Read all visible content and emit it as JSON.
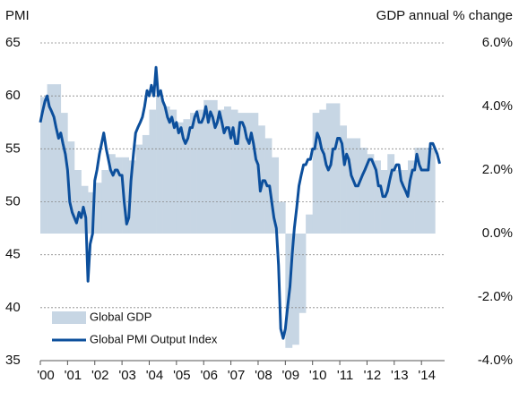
{
  "chart_data": {
    "type": "combo",
    "y_axis_title": "PMI",
    "y2_axis_title": "GDP annual % change",
    "xlim": [
      2000,
      2014.85
    ],
    "xticks": [
      {
        "value": 2000,
        "label": "'00"
      },
      {
        "value": 2001,
        "label": "'01"
      },
      {
        "value": 2002,
        "label": "'02"
      },
      {
        "value": 2003,
        "label": "'03"
      },
      {
        "value": 2004,
        "label": "'04"
      },
      {
        "value": 2005,
        "label": "'05"
      },
      {
        "value": 2006,
        "label": "'06"
      },
      {
        "value": 2007,
        "label": "'07"
      },
      {
        "value": 2008,
        "label": "'08"
      },
      {
        "value": 2009,
        "label": "'09"
      },
      {
        "value": 2010,
        "label": "'10"
      },
      {
        "value": 2011,
        "label": "'11"
      },
      {
        "value": 2012,
        "label": "'12"
      },
      {
        "value": 2013,
        "label": "'13"
      },
      {
        "value": 2014,
        "label": "'14"
      }
    ],
    "ylim": [
      35,
      65
    ],
    "yticks": [
      35,
      40,
      45,
      50,
      55,
      60,
      65
    ],
    "y2lim": [
      -4,
      6
    ],
    "y2ticks": [
      {
        "value": -4,
        "label": "-4.0%"
      },
      {
        "value": -2,
        "label": "-2.0%"
      },
      {
        "value": 0,
        "label": "0.0%"
      },
      {
        "value": 2,
        "label": "2.0%"
      },
      {
        "value": 4,
        "label": "4.0%"
      },
      {
        "value": 6,
        "label": "6.0%"
      }
    ],
    "grid": true,
    "legend": "lower left",
    "series": [
      {
        "name": "Global GDP",
        "type": "bar",
        "axis": "y2",
        "color": "#c7d6e4",
        "x": [
          2000,
          2000.25,
          2000.5,
          2000.75,
          2001,
          2001.25,
          2001.5,
          2001.75,
          2002,
          2002.25,
          2002.5,
          2002.75,
          2003,
          2003.25,
          2003.5,
          2003.75,
          2004,
          2004.25,
          2004.5,
          2004.75,
          2005,
          2005.25,
          2005.5,
          2005.75,
          2006,
          2006.25,
          2006.5,
          2006.75,
          2007,
          2007.25,
          2007.5,
          2007.75,
          2008,
          2008.25,
          2008.5,
          2008.75,
          2009,
          2009.25,
          2009.5,
          2009.75,
          2010,
          2010.25,
          2010.5,
          2010.75,
          2011,
          2011.25,
          2011.5,
          2011.75,
          2012,
          2012.25,
          2012.5,
          2012.75,
          2013,
          2013.25,
          2013.5,
          2013.75,
          2014,
          2014.25
        ],
        "values": [
          4.3,
          4.7,
          4.7,
          3.8,
          2.9,
          2.0,
          1.5,
          1.3,
          1.6,
          2.0,
          2.5,
          2.4,
          2.4,
          2.3,
          2.8,
          3.1,
          3.9,
          4.3,
          4.0,
          3.9,
          3.5,
          3.6,
          3.8,
          3.9,
          4.2,
          4.2,
          3.9,
          4.0,
          3.9,
          3.8,
          3.8,
          3.8,
          3.4,
          3.0,
          2.4,
          1.0,
          -3.6,
          -3.5,
          -2.5,
          0.6,
          3.8,
          3.9,
          4.1,
          4.1,
          3.4,
          3.0,
          3.0,
          2.7,
          2.5,
          2.3,
          2.0,
          2.5,
          2.0,
          2.0,
          2.3,
          2.7,
          2.7,
          2.7
        ]
      },
      {
        "name": "Global PMI Output Index",
        "type": "line",
        "color": "#0c4f9c",
        "x": [
          2000,
          2000.08,
          2000.17,
          2000.25,
          2000.33,
          2000.42,
          2000.5,
          2000.58,
          2000.67,
          2000.75,
          2000.83,
          2000.92,
          2001,
          2001.08,
          2001.17,
          2001.25,
          2001.33,
          2001.42,
          2001.5,
          2001.58,
          2001.67,
          2001.75,
          2001.83,
          2001.92,
          2002,
          2002.08,
          2002.17,
          2002.25,
          2002.33,
          2002.42,
          2002.5,
          2002.58,
          2002.67,
          2002.75,
          2002.83,
          2002.92,
          2003,
          2003.08,
          2003.17,
          2003.25,
          2003.33,
          2003.42,
          2003.5,
          2003.58,
          2003.67,
          2003.75,
          2003.83,
          2003.92,
          2004,
          2004.08,
          2004.17,
          2004.25,
          2004.33,
          2004.42,
          2004.5,
          2004.58,
          2004.67,
          2004.75,
          2004.83,
          2004.92,
          2005,
          2005.08,
          2005.17,
          2005.25,
          2005.33,
          2005.42,
          2005.5,
          2005.58,
          2005.67,
          2005.75,
          2005.83,
          2005.92,
          2006,
          2006.08,
          2006.17,
          2006.25,
          2006.33,
          2006.42,
          2006.5,
          2006.58,
          2006.67,
          2006.75,
          2006.83,
          2006.92,
          2007,
          2007.08,
          2007.17,
          2007.25,
          2007.33,
          2007.42,
          2007.5,
          2007.58,
          2007.67,
          2007.75,
          2007.83,
          2007.92,
          2008,
          2008.08,
          2008.17,
          2008.25,
          2008.33,
          2008.42,
          2008.5,
          2008.58,
          2008.67,
          2008.75,
          2008.83,
          2008.92,
          2009,
          2009.08,
          2009.17,
          2009.25,
          2009.33,
          2009.42,
          2009.5,
          2009.58,
          2009.67,
          2009.75,
          2009.83,
          2009.92,
          2010,
          2010.08,
          2010.17,
          2010.25,
          2010.33,
          2010.42,
          2010.5,
          2010.58,
          2010.67,
          2010.75,
          2010.83,
          2010.92,
          2011,
          2011.08,
          2011.17,
          2011.25,
          2011.33,
          2011.42,
          2011.5,
          2011.58,
          2011.67,
          2011.75,
          2011.83,
          2011.92,
          2012,
          2012.08,
          2012.17,
          2012.25,
          2012.33,
          2012.42,
          2012.5,
          2012.58,
          2012.67,
          2012.75,
          2012.83,
          2012.92,
          2013,
          2013.08,
          2013.17,
          2013.25,
          2013.33,
          2013.42,
          2013.5,
          2013.58,
          2013.67,
          2013.75,
          2013.83,
          2013.92,
          2014,
          2014.08,
          2014.17,
          2014.25,
          2014.33,
          2014.42,
          2014.5,
          2014.58,
          2014.67
        ],
        "values": [
          57.5,
          58.5,
          59.5,
          60,
          59,
          58.5,
          58,
          57,
          56,
          56.5,
          55.5,
          54.5,
          53,
          50,
          49,
          48.5,
          48,
          49,
          48.5,
          49.5,
          48.5,
          42.5,
          46,
          47,
          52,
          53,
          54.5,
          55.5,
          56.5,
          55,
          54,
          53,
          52.5,
          53,
          53,
          52.5,
          52.5,
          50,
          47.9,
          48.5,
          52,
          54.5,
          56.5,
          57,
          57.5,
          58,
          59,
          60.5,
          60,
          61,
          60,
          62.7,
          60,
          60.5,
          59.5,
          59,
          58,
          57.5,
          58,
          57,
          57.5,
          56.5,
          57,
          56,
          55.5,
          56,
          57,
          57,
          58,
          58.5,
          57.5,
          57.5,
          58,
          59,
          57.5,
          58.5,
          58,
          57,
          57.5,
          58.5,
          57.5,
          56.5,
          57,
          57,
          56,
          57,
          55.5,
          55.5,
          57.5,
          57.5,
          57,
          56,
          55.5,
          56.5,
          55.5,
          54,
          53.5,
          51,
          52,
          52,
          51.5,
          51.5,
          50,
          48.5,
          47.5,
          44,
          38,
          37.1,
          38,
          40,
          42,
          45,
          47.5,
          49.5,
          51.5,
          52.5,
          53.5,
          53.5,
          54,
          54,
          55,
          55,
          56.5,
          56,
          55,
          54.5,
          53.5,
          53,
          53.5,
          55,
          55,
          56,
          56,
          55.5,
          53.5,
          54.5,
          54,
          52.5,
          52,
          51.5,
          51.5,
          52,
          52.5,
          53,
          53.5,
          54,
          54,
          53.5,
          53,
          51.5,
          51.5,
          50.5,
          50.5,
          51,
          52,
          53,
          53,
          53.5,
          53.5,
          52,
          51.5,
          51,
          50.5,
          52,
          53,
          53,
          54.5,
          53.5,
          53,
          53,
          53,
          53,
          55.5,
          55.5,
          55,
          54.5,
          53.6
        ]
      }
    ]
  }
}
